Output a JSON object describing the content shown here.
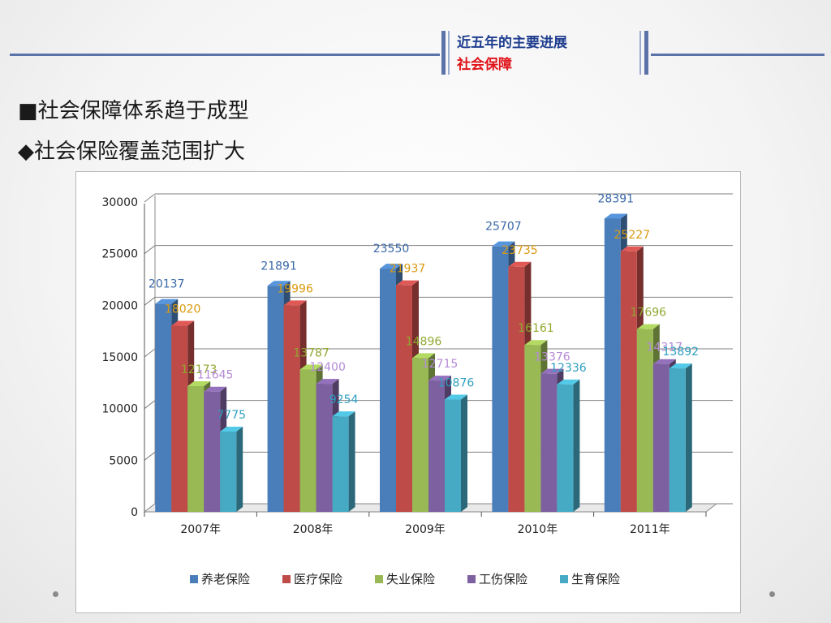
{
  "header": {
    "title": "近五年的主要进展",
    "subtitle": "社会保障"
  },
  "bullets": [
    {
      "marker": "■",
      "text": "社会保障体系趋于成型"
    },
    {
      "marker": "◆",
      "text": "社会保险覆盖范围扩大"
    }
  ],
  "chart_data": {
    "type": "bar",
    "categories": [
      "2007年",
      "2008年",
      "2009年",
      "2010年",
      "2011年"
    ],
    "series": [
      {
        "name": "养老保险",
        "color": "#4a7ebb",
        "values": [
          20137,
          21891,
          23550,
          25707,
          28391
        ]
      },
      {
        "name": "医疗保险",
        "color": "#be4b48",
        "values": [
          18020,
          19996,
          21937,
          23735,
          25227
        ]
      },
      {
        "name": "失业保险",
        "color": "#98b954",
        "values": [
          12173,
          13787,
          14896,
          16161,
          17696
        ]
      },
      {
        "name": "工伤保险",
        "color": "#7d60a0",
        "values": [
          11645,
          12400,
          12715,
          13376,
          14317
        ]
      },
      {
        "name": "生育保险",
        "color": "#46aac5",
        "values": [
          7775,
          9254,
          10876,
          12336,
          13892
        ]
      }
    ],
    "label_colors": [
      "#3a6aa8",
      "#d99a10",
      "#8fa830",
      "#b58ad6",
      "#2f9fc0"
    ],
    "y_ticks": [
      "0",
      "5000",
      "10000",
      "15000",
      "20000",
      "25000",
      "30000"
    ],
    "ylim": [
      0,
      30000
    ],
    "grid": true,
    "legend_position": "bottom"
  }
}
